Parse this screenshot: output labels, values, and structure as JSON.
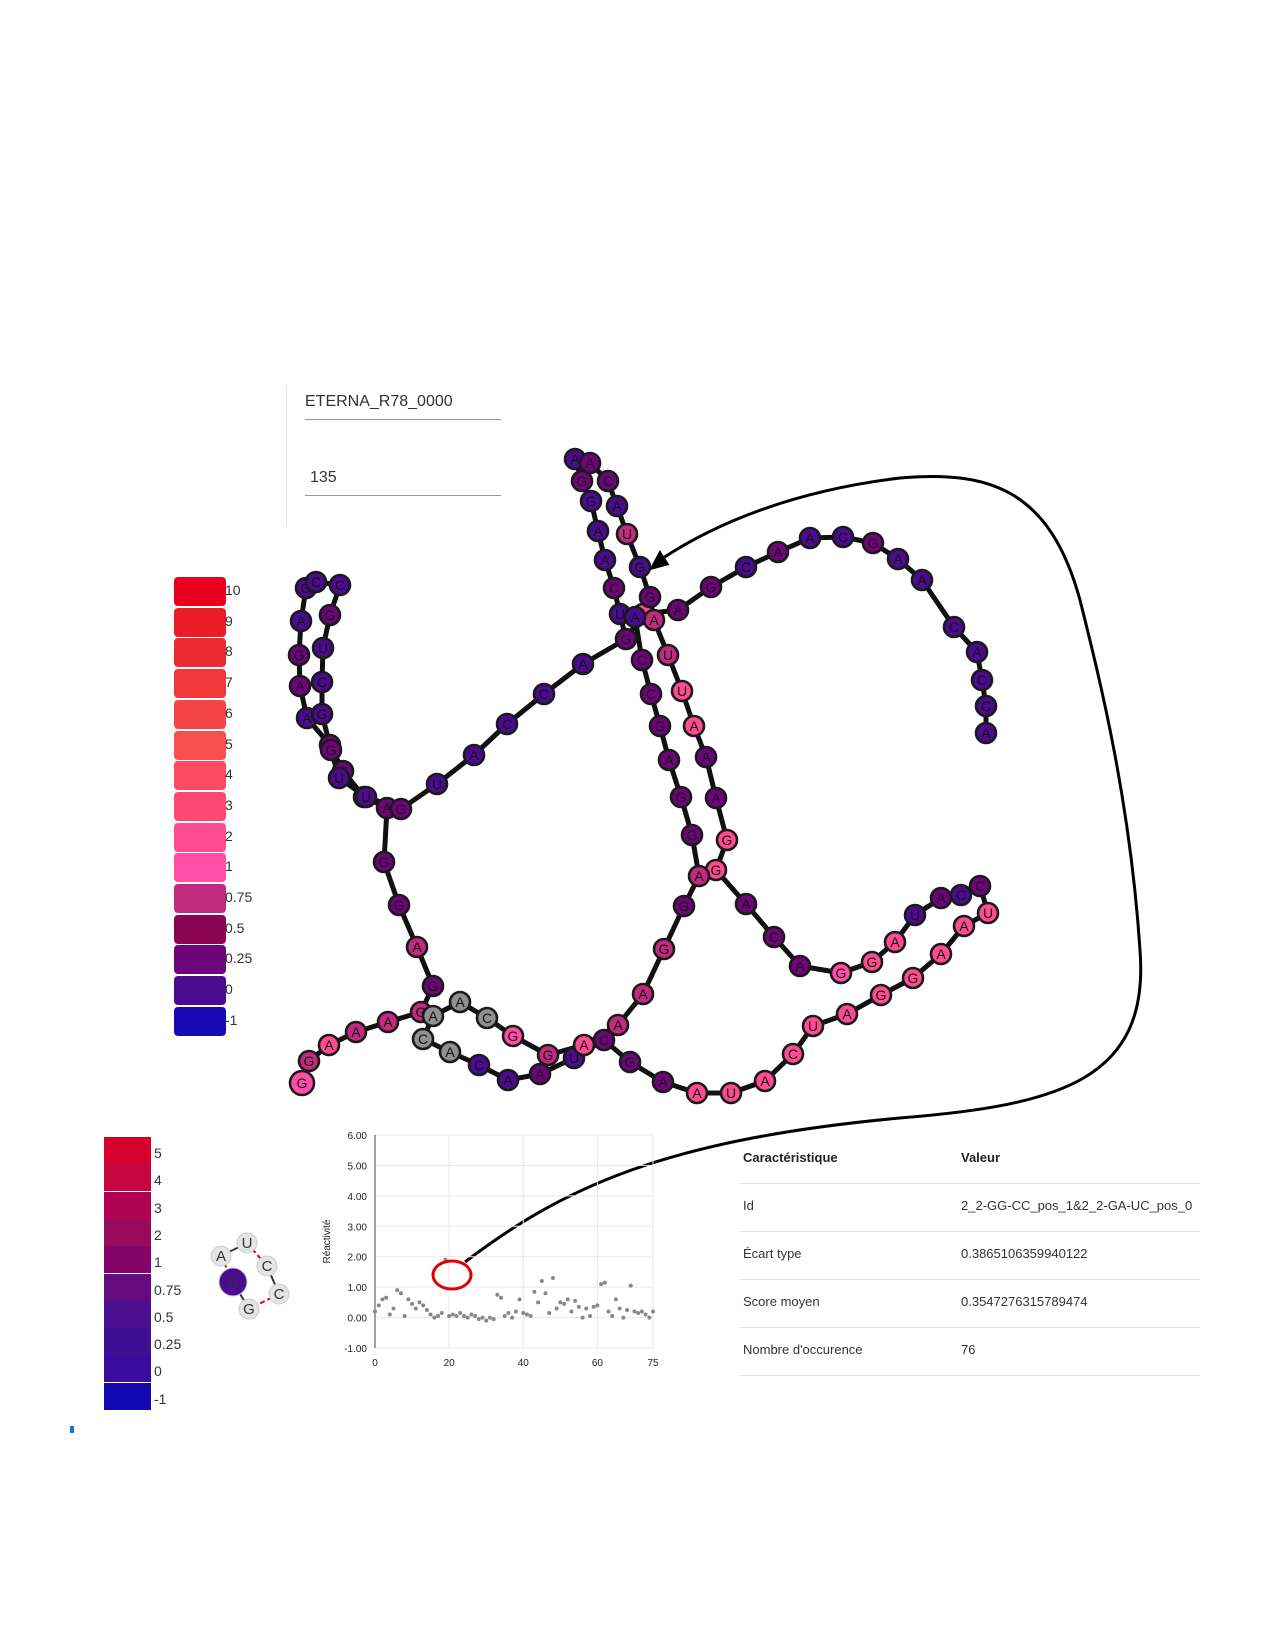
{
  "inputs": {
    "sequence_id": "ETERNA_R78_0000",
    "number": "135"
  },
  "color_colors": {
    "c10": "#e8001e",
    "c9": "#ea1c27",
    "c8": "#ec2a31",
    "c7": "#f0373b",
    "c6": "#f44546",
    "c5": "#f8504f",
    "c4": "#fb4b62",
    "c3": "#fc4874",
    "c2": "#fe4b91",
    "c1": "#ff4ea8",
    "c075": "#c22a7f",
    "c05": "#8a0453",
    "c025": "#6e0479",
    "c0": "#4a0b8e",
    "cm1": "#1709b4",
    "grey": "#909090",
    "light": "#e4e4e4"
  },
  "legend_main": [
    {
      "label": "10",
      "color": "#e8001e"
    },
    {
      "label": "9",
      "color": "#ea1c27"
    },
    {
      "label": "8",
      "color": "#ec2a31"
    },
    {
      "label": "7",
      "color": "#f0373b"
    },
    {
      "label": "6",
      "color": "#f44546"
    },
    {
      "label": "5",
      "color": "#f8504f"
    },
    {
      "label": "4",
      "color": "#fb4b62"
    },
    {
      "label": "3",
      "color": "#fc4874"
    },
    {
      "label": "2",
      "color": "#fe4b91"
    },
    {
      "label": "1",
      "color": "#ff4ea8"
    },
    {
      "label": "0.75",
      "color": "#c22a7f"
    },
    {
      "label": "0.5",
      "color": "#8a0453"
    },
    {
      "label": "0.25",
      "color": "#6e0479"
    },
    {
      "label": "0",
      "color": "#4a0b8e"
    },
    {
      "label": "-1",
      "color": "#1709b4"
    }
  ],
  "legend_small": [
    {
      "label": "5",
      "color": "#d4002e"
    },
    {
      "label": "4",
      "color": "#c40541"
    },
    {
      "label": "3",
      "color": "#b00452"
    },
    {
      "label": "2",
      "color": "#970a5d"
    },
    {
      "label": "1",
      "color": "#84036a"
    },
    {
      "label": "0.75",
      "color": "#650b80"
    },
    {
      "label": "0.5",
      "color": "#4b1090"
    },
    {
      "label": "0.25",
      "color": "#3e0e93"
    },
    {
      "label": "0",
      "color": "#3a0b9d"
    },
    {
      "label": "-1",
      "color": "#1309b2"
    }
  ],
  "motif": {
    "nodes": [
      {
        "base": "A",
        "color": "#e4e4e4"
      },
      {
        "base": "U",
        "color": "#e4e4e4"
      },
      {
        "base": "C",
        "color": "#e4e4e4"
      },
      {
        "base": "C",
        "color": "#e4e4e4"
      },
      {
        "base": "G",
        "color": "#e4e4e4"
      },
      {
        "base": "G",
        "color": "#4a0b8e"
      }
    ]
  },
  "chart_data": {
    "type": "scatter",
    "title": "",
    "xlabel": "",
    "ylabel": "Réactivité",
    "xlim": [
      0,
      75
    ],
    "ylim": [
      -1,
      6
    ],
    "xticks": [
      "0",
      "20",
      "40",
      "60",
      "75"
    ],
    "yticks": [
      "-1.00",
      "0.00",
      "1.00",
      "2.00",
      "3.00",
      "4.00",
      "5.00",
      "6.00"
    ],
    "grid": true,
    "points": [
      [
        0,
        0.2
      ],
      [
        1,
        0.4
      ],
      [
        2,
        0.6
      ],
      [
        3,
        0.65
      ],
      [
        4,
        0.1
      ],
      [
        5,
        0.3
      ],
      [
        6,
        0.9
      ],
      [
        7,
        0.8
      ],
      [
        8,
        0.05
      ],
      [
        9,
        0.6
      ],
      [
        10,
        0.45
      ],
      [
        11,
        0.3
      ],
      [
        12,
        0.5
      ],
      [
        13,
        0.4
      ],
      [
        14,
        0.25
      ],
      [
        15,
        0.1
      ],
      [
        16,
        0.0
      ],
      [
        17,
        0.05
      ],
      [
        18,
        0.15
      ],
      [
        19,
        1.9
      ],
      [
        20,
        0.05
      ],
      [
        21,
        0.1
      ],
      [
        22,
        0.05
      ],
      [
        23,
        0.15
      ],
      [
        24,
        0.05
      ],
      [
        25,
        0.0
      ],
      [
        26,
        0.1
      ],
      [
        27,
        0.05
      ],
      [
        28,
        -0.05
      ],
      [
        29,
        0.0
      ],
      [
        30,
        -0.1
      ],
      [
        31,
        0.0
      ],
      [
        32,
        -0.05
      ],
      [
        33,
        0.75
      ],
      [
        34,
        0.65
      ],
      [
        35,
        0.05
      ],
      [
        36,
        0.15
      ],
      [
        37,
        0.0
      ],
      [
        38,
        0.2
      ],
      [
        39,
        0.6
      ],
      [
        40,
        0.15
      ],
      [
        41,
        0.1
      ],
      [
        42,
        0.05
      ],
      [
        43,
        0.85
      ],
      [
        44,
        0.5
      ],
      [
        45,
        1.2
      ],
      [
        46,
        0.8
      ],
      [
        47,
        0.15
      ],
      [
        48,
        1.3
      ],
      [
        49,
        0.3
      ],
      [
        50,
        0.5
      ],
      [
        51,
        0.45
      ],
      [
        52,
        0.6
      ],
      [
        53,
        0.2
      ],
      [
        54,
        0.55
      ],
      [
        55,
        0.35
      ],
      [
        56,
        0.0
      ],
      [
        57,
        0.3
      ],
      [
        58,
        0.05
      ],
      [
        59,
        0.35
      ],
      [
        60,
        0.4
      ],
      [
        61,
        1.1
      ],
      [
        62,
        1.15
      ],
      [
        63,
        0.2
      ],
      [
        64,
        0.05
      ],
      [
        65,
        0.6
      ],
      [
        66,
        0.3
      ],
      [
        67,
        0.0
      ],
      [
        68,
        0.25
      ],
      [
        69,
        1.05
      ],
      [
        70,
        0.2
      ],
      [
        71,
        0.15
      ],
      [
        72,
        0.2
      ],
      [
        73,
        0.1
      ],
      [
        74,
        0.0
      ],
      [
        75,
        0.2
      ]
    ],
    "highlight_index": 19
  },
  "table": {
    "header": {
      "c1": "Caractéristique",
      "c2": "Valeur"
    },
    "rows": [
      {
        "c1": "Id",
        "c2": "2_2-GG-CC_pos_1&2_2-GA-UC_pos_0"
      },
      {
        "c1": "Écart type",
        "c2": "0.3865106359940122"
      },
      {
        "c1": "Score moyen",
        "c2": "0.3547276315789474"
      },
      {
        "c1": "Nombre d'occurence",
        "c2": "76"
      }
    ]
  },
  "rna": {
    "nodes": [
      {
        "base": "G",
        "c": "c1"
      },
      {
        "base": "G",
        "c": "c075"
      },
      {
        "base": "A",
        "c": "c2"
      },
      {
        "base": "A",
        "c": "c075"
      },
      {
        "base": "A",
        "c": "c075"
      },
      {
        "base": "G",
        "c": "c075"
      },
      {
        "base": "G",
        "c": "c025"
      },
      {
        "base": "A",
        "c": "c075"
      },
      {
        "base": "G",
        "c": "c025"
      },
      {
        "base": "G",
        "c": "c025"
      },
      {
        "base": "A",
        "c": "c025"
      },
      {
        "base": "G",
        "c": "c025"
      },
      {
        "base": "C",
        "c": "c025"
      },
      {
        "base": "C",
        "c": "c025"
      },
      {
        "base": "A",
        "c": "c0"
      },
      {
        "base": "A",
        "c": "c025"
      },
      {
        "base": "G",
        "c": "c025"
      },
      {
        "base": "A",
        "c": "c0"
      },
      {
        "base": "G",
        "c": "c0"
      },
      {
        "base": "C",
        "c": "c0"
      },
      {
        "base": "C",
        "c": "c0"
      },
      {
        "base": "G",
        "c": "c025"
      },
      {
        "base": "U",
        "c": "c0"
      },
      {
        "base": "C",
        "c": "c0"
      },
      {
        "base": "G",
        "c": "c0"
      },
      {
        "base": "G",
        "c": "c025"
      },
      {
        "base": "U",
        "c": "c0"
      },
      {
        "base": "U",
        "c": "c0"
      },
      {
        "base": "G",
        "c": "c025"
      },
      {
        "base": "U",
        "c": "c0"
      },
      {
        "base": "A",
        "c": "c0"
      },
      {
        "base": "C",
        "c": "c0"
      },
      {
        "base": "C",
        "c": "c0"
      },
      {
        "base": "A",
        "c": "c0"
      },
      {
        "base": "G",
        "c": "c025"
      },
      {
        "base": "A",
        "c": "c2"
      },
      {
        "base": "A",
        "c": "c025"
      },
      {
        "base": "G",
        "c": "c025"
      },
      {
        "base": "C",
        "c": "c0"
      },
      {
        "base": "A",
        "c": "c025"
      },
      {
        "base": "A",
        "c": "c0"
      },
      {
        "base": "C",
        "c": "c0"
      },
      {
        "base": "G",
        "c": "c025"
      },
      {
        "base": "A",
        "c": "c0"
      },
      {
        "base": "A",
        "c": "c0"
      },
      {
        "base": "C",
        "c": "c0"
      },
      {
        "base": "A",
        "c": "c0"
      },
      {
        "base": "C",
        "c": "c0"
      },
      {
        "base": "C",
        "c": "c0"
      },
      {
        "base": "A",
        "c": "c0"
      },
      {
        "base": "U",
        "c": "c0"
      },
      {
        "base": "C",
        "c": "c025"
      },
      {
        "base": "A",
        "c": "c0"
      },
      {
        "base": "A",
        "c": "c0"
      },
      {
        "base": "G",
        "c": "c0"
      },
      {
        "base": "G",
        "c": "c025"
      },
      {
        "base": "A",
        "c": "c0"
      },
      {
        "base": "A",
        "c": "c025"
      },
      {
        "base": "C",
        "c": "c025"
      },
      {
        "base": "A",
        "c": "c0"
      },
      {
        "base": "U",
        "c": "c075"
      },
      {
        "base": "G",
        "c": "c0"
      },
      {
        "base": "G",
        "c": "c025"
      },
      {
        "base": "A",
        "c": "c075"
      },
      {
        "base": "U",
        "c": "c075"
      },
      {
        "base": "U",
        "c": "c2"
      },
      {
        "base": "A",
        "c": "c2"
      },
      {
        "base": "A",
        "c": "c025"
      },
      {
        "base": "A",
        "c": "c025"
      },
      {
        "base": "G",
        "c": "c2"
      },
      {
        "base": "G",
        "c": "c2"
      },
      {
        "base": "A",
        "c": "c025"
      },
      {
        "base": "C",
        "c": "c025"
      },
      {
        "base": "A",
        "c": "c025"
      },
      {
        "base": "G",
        "c": "c1"
      },
      {
        "base": "G",
        "c": "c2"
      },
      {
        "base": "A",
        "c": "c2"
      },
      {
        "base": "U",
        "c": "c0"
      },
      {
        "base": "A",
        "c": "c025"
      },
      {
        "base": "C",
        "c": "c0"
      },
      {
        "base": "C",
        "c": "c025"
      },
      {
        "base": "U",
        "c": "c2"
      },
      {
        "base": "A",
        "c": "c2"
      },
      {
        "base": "A",
        "c": "c2"
      },
      {
        "base": "G",
        "c": "c2"
      },
      {
        "base": "G",
        "c": "c2"
      },
      {
        "base": "A",
        "c": "c2"
      },
      {
        "base": "U",
        "c": "c2"
      },
      {
        "base": "C",
        "c": "c2"
      },
      {
        "base": "A",
        "c": "c2"
      },
      {
        "base": "U",
        "c": "c2"
      },
      {
        "base": "A",
        "c": "c2"
      },
      {
        "base": "A",
        "c": "c025"
      },
      {
        "base": "G",
        "c": "c025"
      },
      {
        "base": "C",
        "c": "c025"
      },
      {
        "base": "U",
        "c": "c0"
      },
      {
        "base": "A",
        "c": "c025"
      },
      {
        "base": "A",
        "c": "c0"
      },
      {
        "base": "C",
        "c": "c0"
      },
      {
        "base": "A",
        "c": "grey"
      },
      {
        "base": "C",
        "c": "grey"
      },
      {
        "base": "A",
        "c": "grey"
      },
      {
        "base": "A",
        "c": "grey"
      },
      {
        "base": "C",
        "c": "grey"
      }
    ]
  }
}
